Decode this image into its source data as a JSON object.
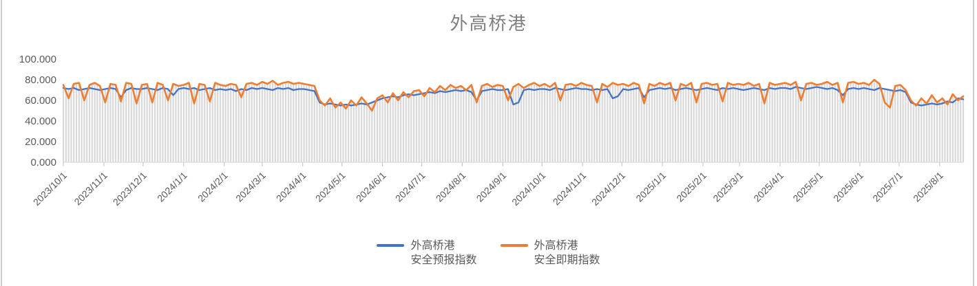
{
  "title": "外高桥港",
  "colors": {
    "series_forecast": "#4472C4",
    "series_spot": "#ED7D31",
    "droplines": "#D9D9D9",
    "axis_line": "#D9D9D9",
    "tick_mark": "#C9C9C9",
    "axis_text": "#595959",
    "title_text": "#7F7F7F"
  },
  "legend": {
    "entries": [
      {
        "line1": "外高桥港",
        "line2": "安全预报指数",
        "color": "#4472C4"
      },
      {
        "line1": "外高桥港",
        "line2": "安全即期指数",
        "color": "#ED7D31"
      }
    ]
  },
  "chart_data": {
    "type": "line",
    "title": "外高桥港",
    "xlabel": "",
    "ylabel": "",
    "legend_position": "bottom",
    "grid": "vertical-droplines",
    "y_axis": {
      "min": 0,
      "max": 100,
      "tick_values": [
        0,
        20,
        40,
        60,
        80,
        100
      ],
      "tick_labels": [
        "0.000",
        "20.000",
        "40.000",
        "60.000",
        "80.000",
        "100.000"
      ]
    },
    "x_axis": {
      "start_date": "2023/10/1",
      "total_days": 688,
      "ticks": [
        {
          "label": "2023/10/1",
          "day": 0
        },
        {
          "label": "2023/11/1",
          "day": 31
        },
        {
          "label": "2023/12/1",
          "day": 61
        },
        {
          "label": "2024/1/1",
          "day": 92
        },
        {
          "label": "2024/2/1",
          "day": 123
        },
        {
          "label": "2024/3/1",
          "day": 152
        },
        {
          "label": "2024/4/1",
          "day": 183
        },
        {
          "label": "2024/5/1",
          "day": 213
        },
        {
          "label": "2024/6/1",
          "day": 244
        },
        {
          "label": "2024/7/1",
          "day": 274
        },
        {
          "label": "2024/8/1",
          "day": 305
        },
        {
          "label": "2024/9/1",
          "day": 336
        },
        {
          "label": "2024/10/1",
          "day": 366
        },
        {
          "label": "2024/11/1",
          "day": 397
        },
        {
          "label": "2024/12/1",
          "day": 427
        },
        {
          "label": "2025/1/1",
          "day": 458
        },
        {
          "label": "2025/2/1",
          "day": 489
        },
        {
          "label": "2025/3/1",
          "day": 517
        },
        {
          "label": "2025/4/1",
          "day": 548
        },
        {
          "label": "2025/5/1",
          "day": 578
        },
        {
          "label": "2025/6/1",
          "day": 609
        },
        {
          "label": "2025/7/1",
          "day": 639
        },
        {
          "label": "2025/8/1",
          "day": 670
        }
      ]
    },
    "sample_step_days": 4,
    "droplines": {
      "interval_days": 2,
      "color": "#D9D9D9"
    },
    "series": [
      {
        "name": "外高桥港安全预报指数",
        "color": "#4472C4",
        "values": [
          72,
          71,
          72,
          70,
          71,
          72,
          71,
          70,
          71,
          72,
          71,
          63,
          70,
          72,
          71,
          71,
          72,
          71,
          70,
          72,
          71,
          65,
          71,
          72,
          71,
          72,
          70,
          71,
          72,
          70,
          71,
          70,
          71,
          69,
          71,
          70,
          72,
          71,
          72,
          71,
          70,
          72,
          71,
          72,
          70,
          71,
          71,
          70,
          69,
          58,
          56,
          57,
          56,
          55,
          56,
          55,
          56,
          57,
          56,
          58,
          60,
          62,
          63,
          64,
          63,
          65,
          66,
          65,
          66,
          67,
          68,
          67,
          69,
          68,
          69,
          70,
          69,
          70,
          68,
          60,
          69,
          70,
          71,
          70,
          70,
          71,
          56,
          58,
          70,
          71,
          70,
          71,
          71,
          70,
          72,
          71,
          70,
          71,
          72,
          71,
          71,
          70,
          71,
          70,
          71,
          62,
          64,
          71,
          70,
          71,
          72,
          63,
          70,
          71,
          72,
          71,
          72,
          70,
          71,
          72,
          71,
          70,
          71,
          72,
          71,
          70,
          72,
          71,
          72,
          71,
          70,
          71,
          72,
          71,
          70,
          72,
          71,
          72,
          72,
          71,
          73,
          72,
          71,
          72,
          73,
          72,
          71,
          72,
          70,
          65,
          71,
          72,
          71,
          72,
          71,
          70,
          72,
          71,
          70,
          69,
          70,
          68,
          58,
          56,
          55,
          56,
          57,
          56,
          57,
          59,
          58,
          62,
          61
        ]
      },
      {
        "name": "外高桥港安全即期指数",
        "color": "#ED7D31",
        "values": [
          75,
          62,
          76,
          77,
          60,
          75,
          77,
          74,
          58,
          76,
          75,
          59,
          77,
          76,
          57,
          75,
          76,
          58,
          77,
          75,
          60,
          76,
          74,
          75,
          77,
          57,
          76,
          75,
          59,
          77,
          75,
          74,
          76,
          75,
          63,
          76,
          77,
          75,
          78,
          76,
          79,
          75,
          77,
          78,
          76,
          77,
          76,
          75,
          74,
          60,
          55,
          62,
          53,
          58,
          52,
          60,
          55,
          63,
          57,
          50,
          62,
          65,
          58,
          67,
          60,
          68,
          63,
          69,
          70,
          64,
          72,
          68,
          74,
          70,
          75,
          72,
          74,
          70,
          75,
          58,
          74,
          76,
          73,
          75,
          74,
          60,
          73,
          76,
          72,
          75,
          77,
          74,
          76,
          73,
          77,
          60,
          75,
          76,
          74,
          77,
          75,
          74,
          58,
          76,
          73,
          77,
          75,
          76,
          74,
          77,
          75,
          57,
          76,
          74,
          77,
          75,
          77,
          60,
          76,
          74,
          77,
          58,
          76,
          77,
          75,
          76,
          59,
          77,
          75,
          76,
          75,
          77,
          74,
          76,
          57,
          77,
          75,
          76,
          77,
          75,
          78,
          60,
          76,
          77,
          75,
          76,
          78,
          75,
          77,
          58,
          77,
          78,
          76,
          77,
          75,
          80,
          76,
          58,
          53,
          74,
          75,
          70,
          60,
          55,
          62,
          57,
          65,
          58,
          62,
          56,
          66,
          60,
          64
        ]
      }
    ]
  }
}
